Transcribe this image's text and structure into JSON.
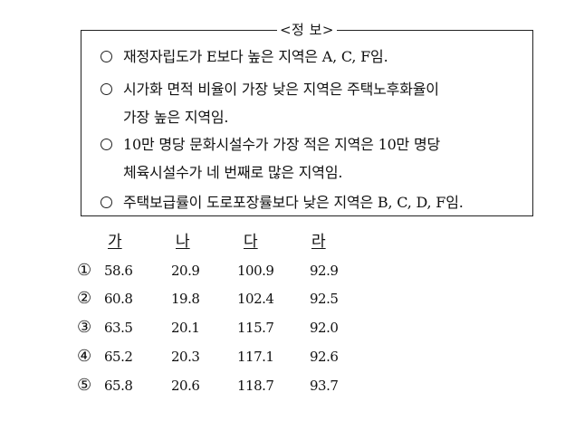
{
  "info": {
    "title": "<정  보>",
    "items": [
      {
        "line1": "재정자립도가 E보다 높은 지역은 A, C, F임.",
        "line2": ""
      },
      {
        "line1": "시가화 면적 비율이 가장 낮은 지역은 주택노후화율이",
        "line2": "가장 높은 지역임."
      },
      {
        "line1": "10만 명당 문화시설수가 가장 적은 지역은 10만 명당",
        "line2": "체육시설수가 네 번째로 많은 지역임."
      },
      {
        "line1": "주택보급률이 도로포장률보다 낮은 지역은 B, C, D, F임.",
        "line2": ""
      }
    ]
  },
  "answers": {
    "headers": [
      "가",
      "나",
      "다",
      "라"
    ],
    "rows": [
      {
        "num": "①",
        "values": [
          "58.6",
          "20.9",
          "100.9",
          "92.9"
        ]
      },
      {
        "num": "②",
        "values": [
          "60.8",
          "19.8",
          "102.4",
          "92.5"
        ]
      },
      {
        "num": "③",
        "values": [
          "63.5",
          "20.1",
          "115.7",
          "92.0"
        ]
      },
      {
        "num": "④",
        "values": [
          "65.2",
          "20.3",
          "117.1",
          "92.6"
        ]
      },
      {
        "num": "⑤",
        "values": [
          "65.8",
          "20.6",
          "118.7",
          "93.7"
        ]
      }
    ]
  }
}
